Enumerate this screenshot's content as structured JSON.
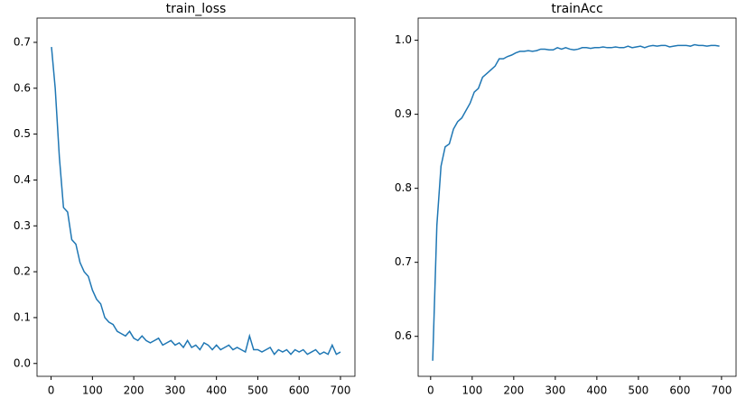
{
  "chart_data": [
    {
      "type": "line",
      "title": "train_loss",
      "x": [
        1,
        10,
        20,
        30,
        40,
        50,
        60,
        70,
        80,
        90,
        100,
        110,
        120,
        130,
        140,
        150,
        160,
        170,
        180,
        190,
        200,
        210,
        220,
        230,
        240,
        250,
        260,
        270,
        280,
        290,
        300,
        310,
        320,
        330,
        340,
        350,
        360,
        370,
        380,
        390,
        400,
        410,
        420,
        430,
        440,
        450,
        460,
        470,
        480,
        490,
        500,
        510,
        520,
        530,
        540,
        550,
        560,
        570,
        580,
        590,
        600,
        610,
        620,
        630,
        640,
        650,
        660,
        670,
        680,
        690,
        700
      ],
      "series": [
        {
          "color": "#1f77b4",
          "values": [
            0.69,
            0.6,
            0.45,
            0.34,
            0.33,
            0.27,
            0.26,
            0.22,
            0.2,
            0.19,
            0.16,
            0.14,
            0.13,
            0.1,
            0.09,
            0.085,
            0.07,
            0.065,
            0.06,
            0.07,
            0.055,
            0.05,
            0.06,
            0.05,
            0.045,
            0.05,
            0.055,
            0.04,
            0.045,
            0.05,
            0.04,
            0.045,
            0.035,
            0.05,
            0.035,
            0.04,
            0.03,
            0.045,
            0.04,
            0.03,
            0.04,
            0.03,
            0.035,
            0.04,
            0.03,
            0.035,
            0.03,
            0.025,
            0.06,
            0.03,
            0.03,
            0.025,
            0.03,
            0.035,
            0.02,
            0.03,
            0.025,
            0.03,
            0.02,
            0.03,
            0.025,
            0.03,
            0.02,
            0.025,
            0.03,
            0.02,
            0.025,
            0.02,
            0.04,
            0.02,
            0.025
          ]
        }
      ],
      "xlim": [
        -34,
        735
      ],
      "xticks": [
        0,
        100,
        200,
        300,
        400,
        500,
        600,
        700
      ],
      "ylim": [
        -0.028,
        0.753
      ],
      "yticks": [
        0.0,
        0.1,
        0.2,
        0.3,
        0.4,
        0.5,
        0.6,
        0.7
      ]
    },
    {
      "type": "line",
      "title": "trainAcc",
      "x": [
        5,
        15,
        25,
        35,
        45,
        55,
        65,
        75,
        85,
        95,
        105,
        115,
        125,
        135,
        145,
        155,
        165,
        175,
        185,
        195,
        205,
        215,
        225,
        235,
        245,
        255,
        265,
        275,
        285,
        295,
        305,
        315,
        325,
        335,
        345,
        355,
        365,
        375,
        385,
        395,
        405,
        415,
        425,
        435,
        445,
        455,
        465,
        475,
        485,
        495,
        505,
        515,
        525,
        535,
        545,
        555,
        565,
        575,
        585,
        595,
        605,
        615,
        625,
        635,
        645,
        655,
        665,
        675,
        685,
        695
      ],
      "series": [
        {
          "color": "#1f77b4",
          "values": [
            0.567,
            0.75,
            0.83,
            0.856,
            0.86,
            0.88,
            0.89,
            0.895,
            0.905,
            0.915,
            0.93,
            0.935,
            0.95,
            0.955,
            0.96,
            0.965,
            0.975,
            0.975,
            0.978,
            0.98,
            0.983,
            0.985,
            0.985,
            0.986,
            0.985,
            0.986,
            0.988,
            0.988,
            0.987,
            0.987,
            0.99,
            0.988,
            0.99,
            0.988,
            0.987,
            0.988,
            0.99,
            0.99,
            0.989,
            0.99,
            0.99,
            0.991,
            0.99,
            0.99,
            0.991,
            0.99,
            0.99,
            0.992,
            0.99,
            0.991,
            0.992,
            0.99,
            0.992,
            0.993,
            0.992,
            0.993,
            0.993,
            0.991,
            0.992,
            0.993,
            0.993,
            0.993,
            0.992,
            0.994,
            0.993,
            0.993,
            0.992,
            0.993,
            0.993,
            0.992
          ]
        }
      ],
      "xlim": [
        -30,
        735
      ],
      "xticks": [
        0,
        100,
        200,
        300,
        400,
        500,
        600,
        700
      ],
      "ylim": [
        0.546,
        1.03
      ],
      "yticks": [
        {
          "value": 0.6,
          "label": "0.6"
        },
        {
          "value": 0.7,
          "label": "0.7"
        },
        {
          "value": 0.8,
          "label": "0.8"
        },
        {
          "value": 0.9,
          "label": "0.9"
        },
        {
          "value": 1.0,
          "label": "1.0"
        }
      ]
    }
  ]
}
